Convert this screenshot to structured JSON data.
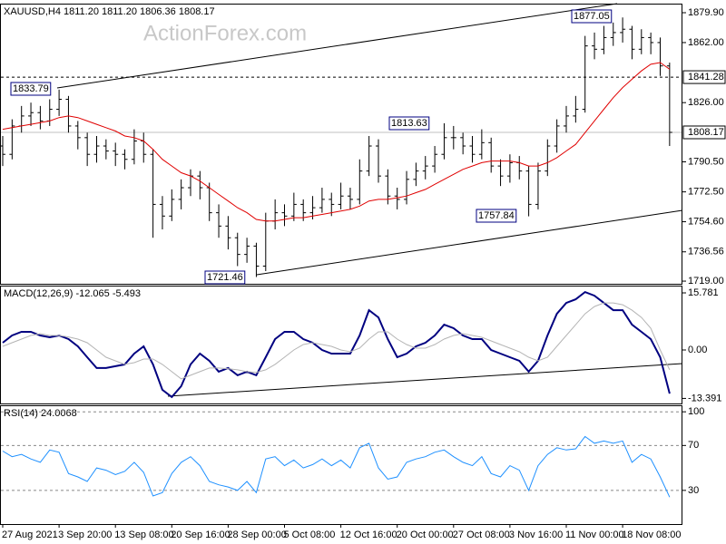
{
  "watermark": "ActionForex.com",
  "chart_data": [
    {
      "type": "ohlc",
      "title": "XAUUSD,H4  1811.20 1811.20 1806.36 1808.17",
      "open": [
        1800,
        1795,
        1812,
        1818,
        1820,
        1815,
        1822,
        1828,
        1812,
        1805,
        1795,
        1800,
        1797,
        1795,
        1792,
        1803,
        1795,
        1765,
        1758,
        1768,
        1775,
        1782,
        1775,
        1760,
        1752,
        1745,
        1735,
        1740,
        1728,
        1755,
        1760,
        1758,
        1765,
        1760,
        1763,
        1768,
        1765,
        1770,
        1768,
        1785,
        1800,
        1782,
        1770,
        1768,
        1780,
        1785,
        1788,
        1795,
        1805,
        1805,
        1800,
        1795,
        1802,
        1788,
        1782,
        1790,
        1785,
        1765,
        1785,
        1800,
        1812,
        1818,
        1822,
        1860,
        1858,
        1865,
        1868,
        1870,
        1858,
        1865,
        1862,
        1848
      ],
      "high": [
        1806,
        1816,
        1824,
        1826,
        1824,
        1828,
        1833.79,
        1830,
        1815,
        1808,
        1806,
        1804,
        1802,
        1798,
        1810,
        1808,
        1798,
        1770,
        1774,
        1780,
        1786,
        1785,
        1778,
        1765,
        1758,
        1748,
        1745,
        1742,
        1760,
        1768,
        1765,
        1772,
        1768,
        1770,
        1775,
        1772,
        1778,
        1775,
        1792,
        1806,
        1804,
        1786,
        1775,
        1785,
        1790,
        1794,
        1800,
        1813.63,
        1812,
        1808,
        1806,
        1810,
        1805,
        1792,
        1795,
        1794,
        1788,
        1790,
        1804,
        1816,
        1824,
        1830,
        1866,
        1868,
        1872,
        1874,
        1877.05,
        1872,
        1870,
        1868,
        1865,
        1850
      ],
      "low": [
        1788,
        1792,
        1808,
        1812,
        1810,
        1812,
        1818,
        1808,
        1798,
        1788,
        1790,
        1792,
        1788,
        1786,
        1789,
        1790,
        1745,
        1750,
        1755,
        1762,
        1770,
        1768,
        1755,
        1745,
        1738,
        1728,
        1730,
        1721.46,
        1725,
        1750,
        1752,
        1755,
        1755,
        1756,
        1760,
        1758,
        1762,
        1762,
        1765,
        1782,
        1778,
        1765,
        1762,
        1765,
        1776,
        1780,
        1784,
        1792,
        1798,
        1795,
        1790,
        1792,
        1784,
        1776,
        1778,
        1780,
        1757.84,
        1762,
        1782,
        1796,
        1808,
        1814,
        1820,
        1852,
        1855,
        1860,
        1862,
        1852,
        1855,
        1855,
        1842,
        1800
      ],
      "close": [
        1795,
        1812,
        1818,
        1820,
        1815,
        1822,
        1828,
        1812,
        1805,
        1795,
        1800,
        1797,
        1795,
        1792,
        1803,
        1795,
        1765,
        1758,
        1768,
        1775,
        1782,
        1775,
        1760,
        1752,
        1745,
        1735,
        1740,
        1728,
        1755,
        1760,
        1758,
        1765,
        1760,
        1763,
        1768,
        1765,
        1770,
        1768,
        1785,
        1800,
        1782,
        1770,
        1768,
        1780,
        1785,
        1788,
        1795,
        1805,
        1805,
        1800,
        1795,
        1802,
        1788,
        1782,
        1790,
        1785,
        1765,
        1785,
        1800,
        1812,
        1818,
        1822,
        1860,
        1858,
        1865,
        1868,
        1870,
        1858,
        1865,
        1862,
        1848,
        1808.17
      ],
      "bar_color": "#000000",
      "series": [
        {
          "color": "#e00000",
          "values": [
            1810,
            1811,
            1812,
            1813,
            1814,
            1815,
            1817,
            1818,
            1817,
            1815,
            1813,
            1811,
            1809,
            1806,
            1805,
            1803,
            1798,
            1792,
            1788,
            1784,
            1782,
            1779,
            1775,
            1771,
            1767,
            1763,
            1760,
            1756,
            1755,
            1755,
            1756,
            1757,
            1757,
            1758,
            1759,
            1760,
            1761,
            1762,
            1764,
            1767,
            1768,
            1768,
            1769,
            1770,
            1772,
            1774,
            1777,
            1780,
            1783,
            1786,
            1788,
            1790,
            1791,
            1791,
            1791,
            1790,
            1788,
            1788,
            1790,
            1793,
            1797,
            1801,
            1808,
            1815,
            1822,
            1829,
            1835,
            1840,
            1845,
            1849,
            1850,
            1846
          ]
        }
      ],
      "ylim": [
        1717.4,
        1884.8
      ],
      "yticks": [
        {
          "value": 1879.9,
          "label": "1879.90"
        },
        {
          "value": 1862,
          "label": "1862.00"
        },
        {
          "value": 1826,
          "label": "1826.00"
        },
        {
          "value": 1790.5,
          "label": "1790.50"
        },
        {
          "value": 1772.5,
          "label": "1772.50"
        },
        {
          "value": 1754.6,
          "label": "1754.60"
        },
        1736.56,
        {
          "value": 1719,
          "label": "1719.00"
        }
      ],
      "hline": 1841.28,
      "current_price": 1808.17,
      "annotations": [
        "1833.79",
        "1721.46",
        "1813.63",
        "1757.84",
        "1877.05"
      ],
      "grid": false
    },
    {
      "type": "line",
      "title": "MACD(12,26,9) -12.065 -5.493",
      "series": [
        {
          "color": "#000080",
          "values": [
            2,
            4,
            5,
            5,
            4,
            3.5,
            4,
            3,
            1,
            -2,
            -5,
            -5,
            -4.5,
            -4,
            -1,
            1,
            -4,
            -11,
            -13,
            -10,
            -4,
            -1,
            -3,
            -6,
            -5,
            -7,
            -6,
            -7,
            -2,
            3,
            5,
            5,
            3,
            2,
            0,
            -1,
            -1,
            -1,
            4,
            11,
            9,
            3,
            -2,
            -1,
            1,
            2,
            4,
            7,
            6,
            4,
            3,
            3,
            0,
            -1,
            -2,
            -3,
            -6,
            -3,
            4,
            10,
            13,
            14,
            16,
            15,
            13,
            11,
            11,
            7,
            5,
            3,
            -2,
            -12.065
          ]
        },
        {
          "color": "#b4b4b4",
          "values": [
            1,
            2,
            3,
            4,
            4.5,
            4,
            4,
            3.6,
            3,
            2,
            0,
            -2,
            -3,
            -4,
            -3.5,
            -2.5,
            -2.5,
            -4,
            -6,
            -8,
            -7,
            -6,
            -5,
            -5,
            -5.2,
            -5.5,
            -6,
            -6.2,
            -5.5,
            -4,
            -2,
            0,
            1.5,
            2,
            1.5,
            1,
            0,
            -0.5,
            0.5,
            3,
            5,
            5,
            3,
            1.5,
            0.5,
            0.5,
            1.5,
            3,
            4,
            4.5,
            4,
            3.5,
            2.5,
            1.5,
            0.5,
            -0.5,
            -2,
            -3,
            -2,
            1,
            4,
            7,
            10,
            12,
            13,
            13,
            12.5,
            11,
            9,
            6,
            0,
            -5.493
          ]
        }
      ],
      "ylim": [
        -14.79,
        17.54
      ],
      "yticks": [
        15.781,
        {
          "value": 0,
          "label": "0.00"
        },
        -13.391
      ],
      "grid": false
    },
    {
      "type": "line",
      "title": "RSI(14) 24.0068",
      "categories": [
        "27 Aug 2021",
        null,
        null,
        null,
        null,
        null,
        "3 Sep 20:00",
        null,
        null,
        null,
        null,
        null,
        "13 Sep 08:00",
        null,
        null,
        null,
        null,
        null,
        "20 Sep 16:00",
        null,
        null,
        null,
        null,
        null,
        "28 Sep 00:00",
        null,
        null,
        null,
        null,
        null,
        "5 Oct 08:00",
        null,
        null,
        null,
        null,
        null,
        "12 Oct 16:00",
        null,
        null,
        null,
        null,
        null,
        "20 Oct 00:00",
        null,
        null,
        null,
        null,
        null,
        "27 Oct 08:00",
        null,
        null,
        null,
        null,
        null,
        "3 Nov 16:00",
        null,
        null,
        null,
        null,
        null,
        "11 Nov 00:00",
        null,
        null,
        null,
        null,
        null,
        "18 Nov 08:00",
        null,
        null,
        null,
        null,
        null
      ],
      "series": [
        {
          "color": "#1e90ff",
          "values": [
            65,
            60,
            62,
            58,
            55,
            66,
            64,
            45,
            42,
            38,
            50,
            48,
            44,
            47,
            55,
            46,
            25,
            28,
            45,
            55,
            60,
            52,
            38,
            35,
            33,
            30,
            38,
            28,
            58,
            60,
            52,
            57,
            50,
            53,
            58,
            52,
            57,
            50,
            68,
            72,
            50,
            40,
            42,
            55,
            58,
            60,
            64,
            66,
            60,
            55,
            52,
            60,
            45,
            42,
            52,
            48,
            30,
            52,
            62,
            68,
            66,
            67,
            78,
            72,
            74,
            72,
            74,
            55,
            62,
            58,
            42,
            24.0068
          ]
        }
      ],
      "ylim": [
        0,
        105
      ],
      "yticks": [
        100,
        70,
        30
      ],
      "grid": "dashed"
    }
  ]
}
